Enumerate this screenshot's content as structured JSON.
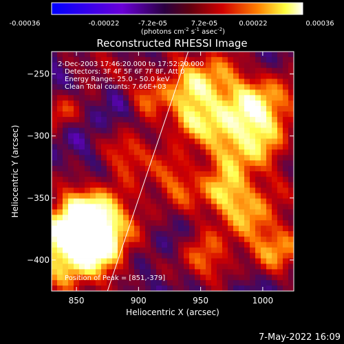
{
  "colorbar": {
    "tick_labels": [
      "-0.00036",
      "-0.00022",
      "-7.2e-05",
      "7.2e-05",
      "0.00022",
      "0.00036"
    ],
    "unit_label": "(photons cm",
    "unit_sup1": "-2",
    "unit_mid1": " s",
    "unit_sup2": "-1",
    "unit_mid2": " asec",
    "unit_sup3": "-2",
    "unit_end": ")",
    "colors": [
      "#0000ff",
      "#6a00d8",
      "#3a0050",
      "#c00000",
      "#ff7000",
      "#ffff60",
      "#ffffff"
    ]
  },
  "plot": {
    "title": "Reconstructed RHESSI Image",
    "xlabel": "Heliocentric X (arcsec)",
    "ylabel": "Heliocentric Y (arcsec)",
    "xlim": [
      830,
      1025
    ],
    "ylim": [
      -425,
      -232
    ],
    "x_ticks": [
      850,
      900,
      950,
      1000
    ],
    "x_tick_labels": [
      "850",
      "900",
      "950",
      "1000"
    ],
    "y_ticks": [
      -250,
      -300,
      -350,
      -400
    ],
    "y_tick_labels": [
      "−250",
      "−300",
      "−350",
      "−400"
    ],
    "info_lines": [
      " 2-Dec-2003 17:46:20.000 to 17:52:20.000",
      "Detectors: 3F 4F 5F 6F 7F 8F, Att 0",
      "Energy Range: 25.0 - 50.0 keV",
      "Clean     Total counts: 7.66E+03"
    ],
    "peak_label": "Position of Peak = [851,-379]",
    "peak_position": [
      851,
      -379
    ],
    "limb_line": [
      [
        875,
        -425
      ],
      [
        940,
        -232
      ]
    ],
    "limb_color": "#ffffff"
  },
  "footer": {
    "timestamp": "7-May-2022 16:09"
  }
}
